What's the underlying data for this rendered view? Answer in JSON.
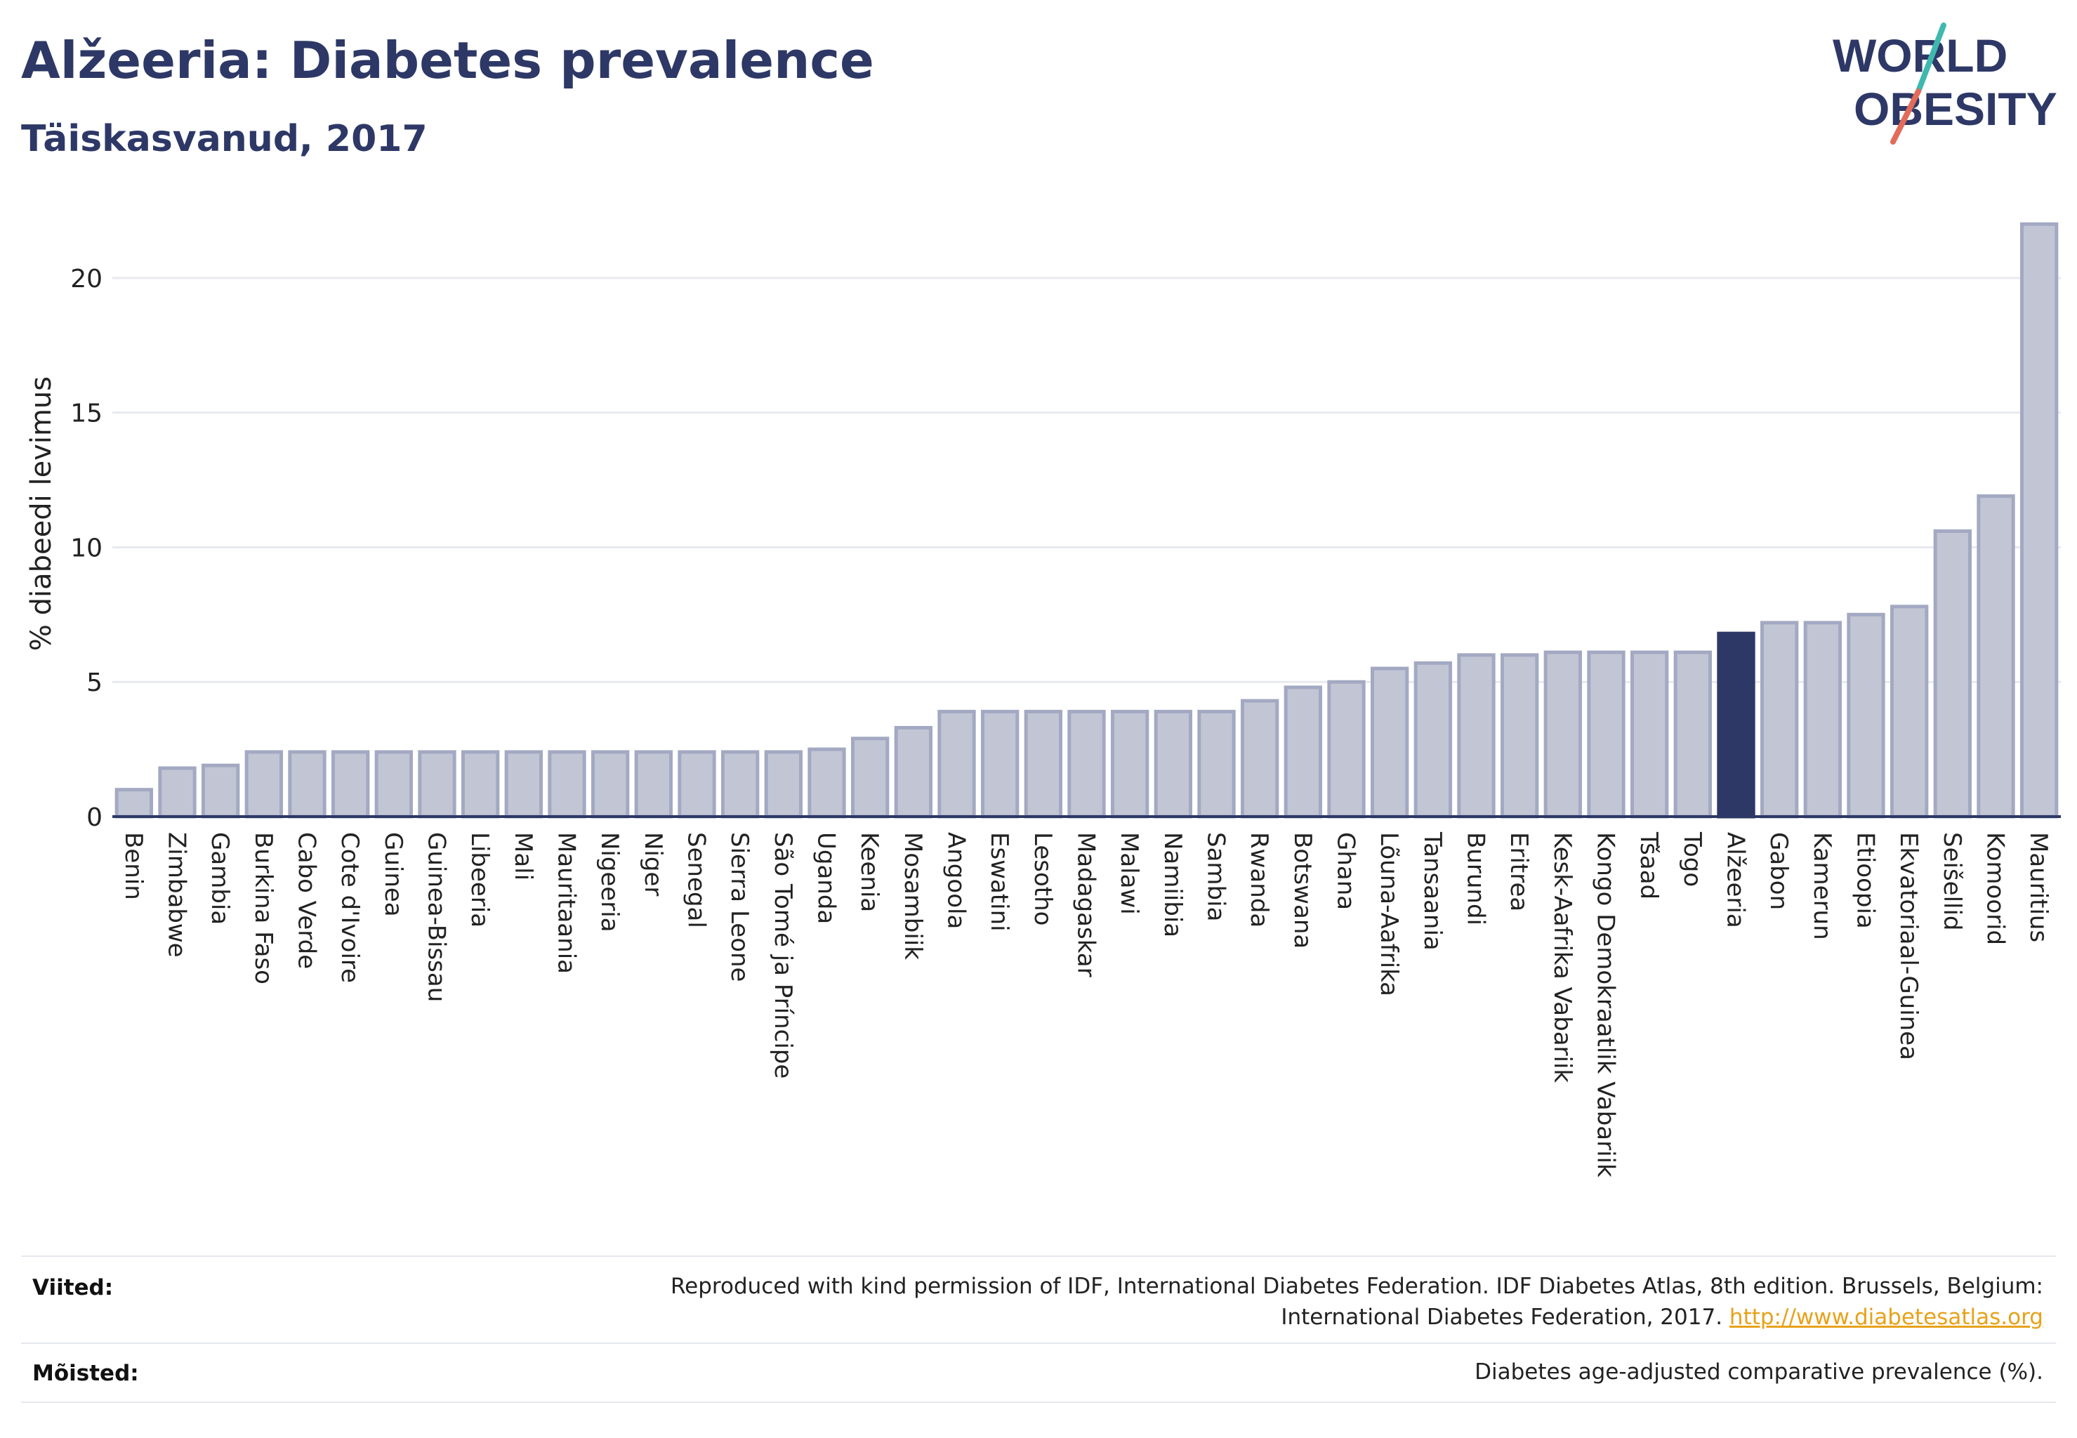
{
  "header": {
    "title": "Alžeeria: Diabetes prevalence",
    "subtitle": "Täiskasvanud, 2017"
  },
  "logo": {
    "line1": "WORLD",
    "line2": "OBESITY",
    "colors": {
      "text": "#2d3866",
      "slash_top": "#3fb8b0",
      "slash_bottom": "#e26b5a"
    }
  },
  "chart_data": {
    "type": "bar",
    "title": "Alžeeria: Diabetes prevalence",
    "subtitle": "Täiskasvanud, 2017",
    "xlabel": "",
    "ylabel": "% diabeedi levimus",
    "ylim": [
      0,
      22.5
    ],
    "yticks": [
      0,
      5,
      10,
      15,
      20
    ],
    "grid": true,
    "highlight": "Alžeeria",
    "colors": {
      "bar": "#c2c6d4",
      "bar_edge": "#a3a9c2",
      "highlight": "#2d3866",
      "grid": "#e8e9ef",
      "axis": "#2d3866"
    },
    "categories": [
      "Benin",
      "Zimbabwe",
      "Gambia",
      "Burkina Faso",
      "Cabo Verde",
      "Cote d'Ivoire",
      "Guinea",
      "Guinea-Bissau",
      "Libeeria",
      "Mali",
      "Mauritaania",
      "Nigeeria",
      "Niger",
      "Senegal",
      "Sierra Leone",
      "São Tomé ja Príncipe",
      "Uganda",
      "Keenia",
      "Mosambiik",
      "Angoola",
      "Eswatini",
      "Lesotho",
      "Madagaskar",
      "Malawi",
      "Namiibia",
      "Sambia",
      "Rwanda",
      "Botswana",
      "Ghana",
      "Lõuna-Aafrika",
      "Tansaania",
      "Burundi",
      "Eritrea",
      "Kesk-Aafrika Vabariik",
      "Kongo Demokraatlik Vabariik",
      "Tšaad",
      "Togo",
      "Alžeeria",
      "Gabon",
      "Kamerun",
      "Etioopia",
      "Ekvatoriaal-Guinea",
      "Seišellid",
      "Komoorid",
      "Mauritius"
    ],
    "values": [
      1.0,
      1.8,
      1.9,
      2.4,
      2.4,
      2.4,
      2.4,
      2.4,
      2.4,
      2.4,
      2.4,
      2.4,
      2.4,
      2.4,
      2.4,
      2.4,
      2.5,
      2.9,
      3.3,
      3.9,
      3.9,
      3.9,
      3.9,
      3.9,
      3.9,
      3.9,
      4.3,
      4.8,
      5.0,
      5.5,
      5.7,
      6.0,
      6.0,
      6.1,
      6.1,
      6.1,
      6.1,
      6.8,
      7.2,
      7.2,
      7.5,
      7.8,
      10.6,
      11.9,
      22.0
    ]
  },
  "footer": {
    "sources_label": "Viited:",
    "sources_line1": "Reproduced with kind permission of IDF, International Diabetes Federation. IDF Diabetes Atlas, 8th edition. Brussels, Belgium:",
    "sources_line2": "International Diabetes Federation, 2017.",
    "sources_link": "http://www.diabetesatlas.org",
    "definitions_label": "Mõisted:",
    "definitions_text": "Diabetes age-adjusted comparative prevalence (%)."
  }
}
